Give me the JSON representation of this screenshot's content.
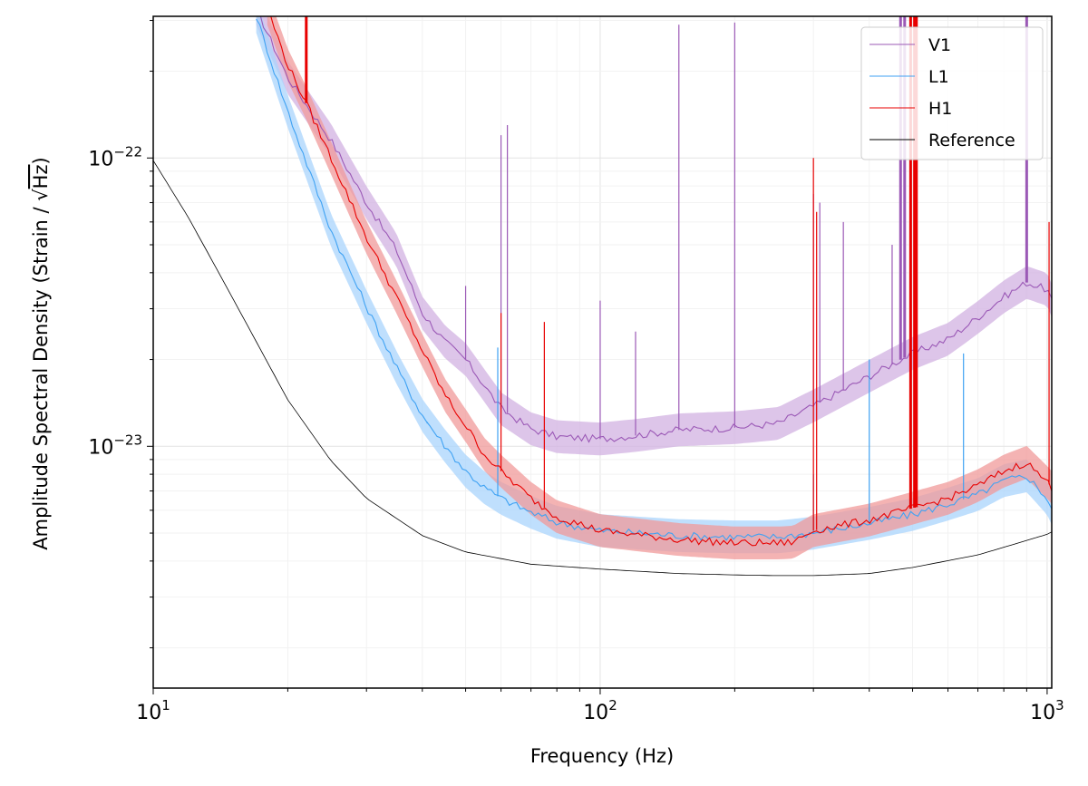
{
  "chart_data": {
    "type": "line",
    "xscale": "log",
    "yscale": "log",
    "xlim": [
      10,
      1024
    ],
    "ylim": [
      1.45e-24,
      3.1e-22
    ],
    "xlabel": "Frequency (Hz)",
    "ylabel_prefix": "Amplitude Spectral Density (Strain / ",
    "ylabel_radicand": "Hz",
    "ylabel_suffix": ")",
    "x_ticks": [
      {
        "base": "10",
        "exp": "1"
      },
      {
        "base": "10",
        "exp": "2"
      },
      {
        "base": "10",
        "exp": "3"
      }
    ],
    "y_ticks": [
      {
        "base": "10",
        "exp": "−23"
      },
      {
        "base": "10",
        "exp": "−22"
      }
    ],
    "x_tick_values": [
      10,
      100,
      1000
    ],
    "y_tick_values": [
      1e-23,
      1e-22
    ],
    "grid": true,
    "legend_position": "top-right",
    "series": [
      {
        "name": "V1",
        "color": "#9b59b6",
        "band_color": "#d2b2e2",
        "x": [
          17,
          20,
          25,
          30,
          35,
          40,
          45,
          50,
          60,
          70,
          80,
          100,
          120,
          150,
          200,
          250,
          300,
          400,
          500,
          600,
          700,
          800,
          900,
          1000,
          1024
        ],
        "y": [
          3.3e-22,
          1.9e-22,
          1.15e-22,
          7e-23,
          4.8e-23,
          2.9e-23,
          2.3e-23,
          2e-23,
          1.35e-23,
          1.15e-23,
          1.08e-23,
          1.06e-23,
          1.09e-23,
          1.14e-23,
          1.16e-23,
          1.2e-23,
          1.38e-23,
          1.75e-23,
          2.1e-23,
          2.35e-23,
          2.8e-23,
          3.3e-23,
          3.7e-23,
          3.5e-23,
          3.2e-23
        ],
        "spikes": [
          {
            "x": 50,
            "y": 3.6e-23
          },
          {
            "x": 60,
            "y": 1.2e-22
          },
          {
            "x": 62,
            "y": 1.3e-22
          },
          {
            "x": 100,
            "y": 3.2e-23
          },
          {
            "x": 120,
            "y": 2.5e-23
          },
          {
            "x": 150,
            "y": 2.9e-22
          },
          {
            "x": 200,
            "y": 2.95e-22
          },
          {
            "x": 300,
            "y": 7.5e-23
          },
          {
            "x": 310,
            "y": 7e-23
          },
          {
            "x": 350,
            "y": 6e-23
          },
          {
            "x": 450,
            "y": 5e-23
          },
          {
            "x": 470,
            "y": 3.1e-22
          },
          {
            "x": 480,
            "y": 3.1e-22
          },
          {
            "x": 900,
            "y": 3.1e-22
          }
        ]
      },
      {
        "name": "L1",
        "color": "#3fa2f3",
        "band_color": "#a9d4fc",
        "x": [
          17,
          20,
          25,
          30,
          35,
          40,
          45,
          50,
          55,
          60,
          70,
          80,
          100,
          150,
          200,
          250,
          300,
          400,
          500,
          600,
          700,
          800,
          900,
          1000,
          1024
        ],
        "y": [
          3.1e-22,
          1.45e-22,
          5.6e-23,
          3.05e-23,
          1.88e-23,
          1.28e-23,
          1e-23,
          8.2e-24,
          7.2e-24,
          6.6e-24,
          5.9e-24,
          5.45e-24,
          5.1e-24,
          4.9e-24,
          4.85e-24,
          4.85e-24,
          5e-24,
          5.4e-24,
          5.8e-24,
          6.3e-24,
          6.8e-24,
          7.6e-24,
          7.9e-24,
          6.6e-24,
          6.1e-24
        ],
        "spikes": [
          {
            "x": 41,
            "y": 1.2e-23
          },
          {
            "x": 59,
            "y": 2.2e-23
          },
          {
            "x": 300,
            "y": 8e-24
          },
          {
            "x": 400,
            "y": 2e-23
          },
          {
            "x": 650,
            "y": 2.1e-23
          }
        ]
      },
      {
        "name": "H1",
        "color": "#e80000",
        "band_color": "#f09a9a",
        "x": [
          18,
          20,
          22,
          25,
          30,
          35,
          40,
          45,
          50,
          55,
          60,
          70,
          80,
          100,
          150,
          200,
          250,
          270,
          300,
          400,
          500,
          600,
          700,
          800,
          900,
          1000,
          1024
        ],
        "y": [
          3.3e-22,
          2.1e-22,
          1.55e-22,
          1e-22,
          5.3e-23,
          3.3e-23,
          2.15e-23,
          1.5e-23,
          1.18e-23,
          9.4e-24,
          8.2e-24,
          6.6e-24,
          5.7e-24,
          5.1e-24,
          4.75e-24,
          4.62e-24,
          4.62e-24,
          4.65e-24,
          5.1e-24,
          5.55e-24,
          6.1e-24,
          6.6e-24,
          7.3e-24,
          8.2e-24,
          8.8e-24,
          7.5e-24,
          7.2e-24
        ],
        "spikes": [
          {
            "x": 22,
            "y": 3.1e-22
          },
          {
            "x": 60,
            "y": 2.9e-23
          },
          {
            "x": 75,
            "y": 2.7e-23
          },
          {
            "x": 300,
            "y": 1e-22
          },
          {
            "x": 305,
            "y": 6.5e-23
          },
          {
            "x": 495,
            "y": 3.1e-22
          },
          {
            "x": 505,
            "y": 3.1e-22
          },
          {
            "x": 510,
            "y": 3.1e-22
          },
          {
            "x": 1010,
            "y": 6e-23
          }
        ]
      },
      {
        "name": "Reference",
        "color": "#000000",
        "x": [
          10,
          12,
          15,
          20,
          25,
          30,
          40,
          50,
          70,
          100,
          150,
          200,
          250,
          300,
          400,
          500,
          700,
          1000,
          1024
        ],
        "y": [
          9.8e-23,
          6.2e-23,
          3.3e-23,
          1.45e-23,
          8.9e-24,
          6.6e-24,
          4.9e-24,
          4.3e-24,
          3.9e-24,
          3.75e-24,
          3.62e-24,
          3.58e-24,
          3.56e-24,
          3.56e-24,
          3.62e-24,
          3.8e-24,
          4.2e-24,
          4.95e-24,
          5.05e-24
        ]
      }
    ]
  }
}
